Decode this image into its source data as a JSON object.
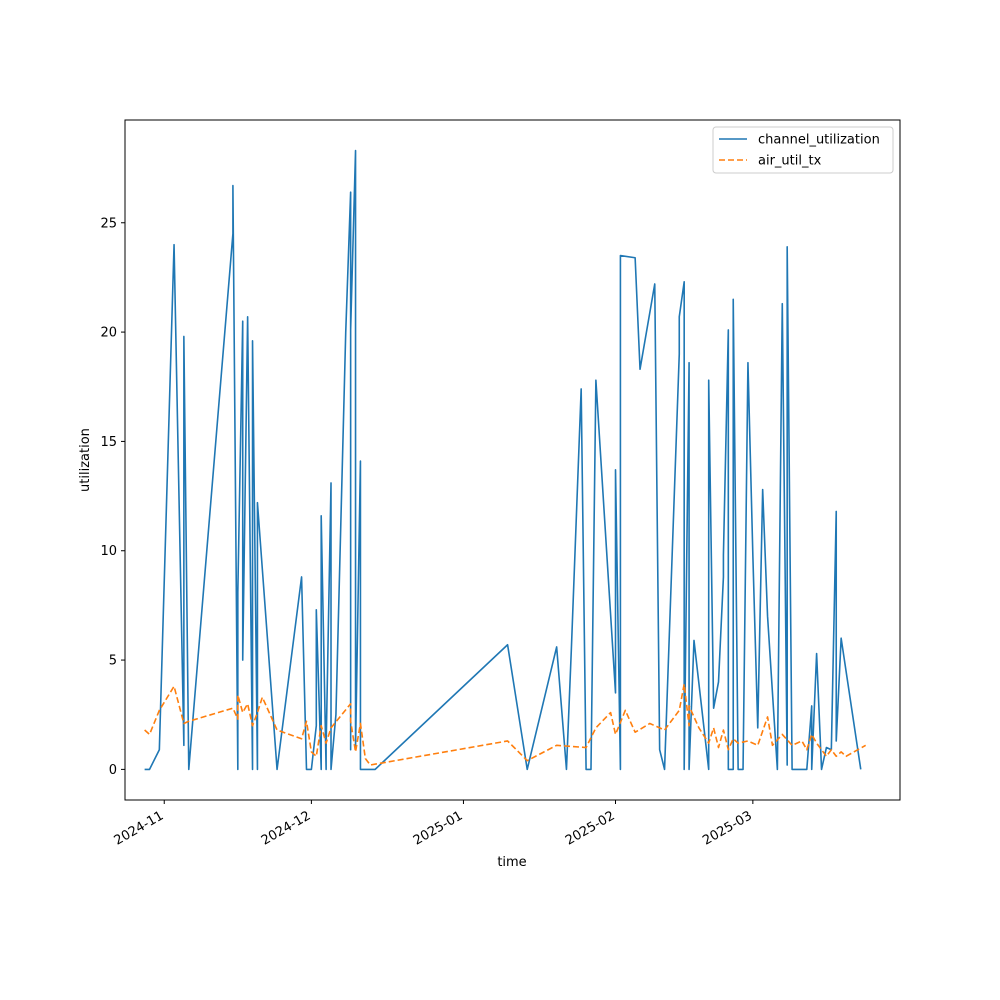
{
  "chart_data": {
    "type": "line",
    "xlabel": "time",
    "ylabel": "utilization",
    "x_type": "date",
    "xlim": [
      "2024-10-24",
      "2025-03-31"
    ],
    "ylim": [
      -1.4,
      29.7
    ],
    "x_ticks": [
      {
        "date": "2024-11-01",
        "label": "2024-11"
      },
      {
        "date": "2024-12-01",
        "label": "2024-12"
      },
      {
        "date": "2025-01-01",
        "label": "2025-01"
      },
      {
        "date": "2025-02-01",
        "label": "2025-02"
      },
      {
        "date": "2025-03-01",
        "label": "2025-03"
      }
    ],
    "y_ticks": [
      0,
      5,
      10,
      15,
      20,
      25
    ],
    "grid": false,
    "legend_position": "top-right",
    "series": [
      {
        "name": "channel_utilization",
        "color": "#1f77b4",
        "dash": "solid",
        "points": [
          [
            "2024-10-28",
            0
          ],
          [
            "2024-10-29",
            0
          ],
          [
            "2024-10-31",
            0.9
          ],
          [
            "2024-11-03",
            24.0
          ],
          [
            "2024-11-05",
            1.1
          ],
          [
            "2024-11-05",
            19.8
          ],
          [
            "2024-11-06",
            0
          ],
          [
            "2024-11-15",
            24.5
          ],
          [
            "2024-11-15",
            26.7
          ],
          [
            "2024-11-16",
            0
          ],
          [
            "2024-11-16",
            8.1
          ],
          [
            "2024-11-17",
            20.5
          ],
          [
            "2024-11-17",
            5.0
          ],
          [
            "2024-11-18",
            20.7
          ],
          [
            "2024-11-19",
            0
          ],
          [
            "2024-11-19",
            19.6
          ],
          [
            "2024-11-20",
            0
          ],
          [
            "2024-11-20",
            12.2
          ],
          [
            "2024-11-24",
            0
          ],
          [
            "2024-11-29",
            8.8
          ],
          [
            "2024-11-30",
            0
          ],
          [
            "2024-12-01",
            0
          ],
          [
            "2024-12-02",
            2.0
          ],
          [
            "2024-12-02",
            7.3
          ],
          [
            "2024-12-03",
            0
          ],
          [
            "2024-12-03",
            11.6
          ],
          [
            "2024-12-04",
            0
          ],
          [
            "2024-12-04",
            1.0
          ],
          [
            "2024-12-05",
            13.1
          ],
          [
            "2024-12-05",
            0
          ],
          [
            "2024-12-06",
            2.5
          ],
          [
            "2024-12-08",
            20.0
          ],
          [
            "2024-12-09",
            26.4
          ],
          [
            "2024-12-09",
            0.9
          ],
          [
            "2024-12-09",
            20.1
          ],
          [
            "2024-12-10",
            28.3
          ],
          [
            "2024-12-10",
            1.0
          ],
          [
            "2024-12-11",
            14.1
          ],
          [
            "2024-12-11",
            0
          ],
          [
            "2024-12-14",
            0
          ],
          [
            "2025-01-10",
            5.7
          ],
          [
            "2025-01-14",
            0
          ],
          [
            "2025-01-20",
            5.6
          ],
          [
            "2025-01-22",
            0
          ],
          [
            "2025-01-23",
            5.5
          ],
          [
            "2025-01-25",
            17.4
          ],
          [
            "2025-01-26",
            0
          ],
          [
            "2025-01-27",
            0
          ],
          [
            "2025-01-28",
            17.8
          ],
          [
            "2025-02-01",
            3.5
          ],
          [
            "2025-02-01",
            13.7
          ],
          [
            "2025-02-02",
            0
          ],
          [
            "2025-02-02",
            23.5
          ],
          [
            "2025-02-05",
            23.4
          ],
          [
            "2025-02-06",
            18.3
          ],
          [
            "2025-02-09",
            22.2
          ],
          [
            "2025-02-10",
            0.9
          ],
          [
            "2025-02-11",
            0
          ],
          [
            "2025-02-14",
            19.0
          ],
          [
            "2025-02-14",
            20.7
          ],
          [
            "2025-02-15",
            22.3
          ],
          [
            "2025-02-15",
            0
          ],
          [
            "2025-02-16",
            18.6
          ],
          [
            "2025-02-16",
            0
          ],
          [
            "2025-02-17",
            5.9
          ],
          [
            "2025-02-20",
            0
          ],
          [
            "2025-02-20",
            17.8
          ],
          [
            "2025-02-21",
            2.8
          ],
          [
            "2025-02-22",
            4.0
          ],
          [
            "2025-02-23",
            8.8
          ],
          [
            "2025-02-23",
            9.8
          ],
          [
            "2025-02-24",
            20.1
          ],
          [
            "2025-02-24",
            0
          ],
          [
            "2025-02-25",
            0
          ],
          [
            "2025-02-25",
            21.5
          ],
          [
            "2025-02-26",
            0
          ],
          [
            "2025-02-27",
            0
          ],
          [
            "2025-02-28",
            18.6
          ],
          [
            "2025-03-01",
            9.8
          ],
          [
            "2025-03-02",
            1.9
          ],
          [
            "2025-03-03",
            12.8
          ],
          [
            "2025-03-04",
            7.0
          ],
          [
            "2025-03-06",
            0
          ],
          [
            "2025-03-06",
            0
          ],
          [
            "2025-03-07",
            21.3
          ],
          [
            "2025-03-08",
            0.2
          ],
          [
            "2025-03-08",
            23.9
          ],
          [
            "2025-03-09",
            0
          ],
          [
            "2025-03-12",
            0
          ],
          [
            "2025-03-13",
            2.9
          ],
          [
            "2025-03-13",
            0
          ],
          [
            "2025-03-14",
            5.3
          ],
          [
            "2025-03-15",
            0
          ],
          [
            "2025-03-16",
            1.0
          ],
          [
            "2025-03-17",
            0.9
          ],
          [
            "2025-03-18",
            11.8
          ],
          [
            "2025-03-18",
            1.3
          ],
          [
            "2025-03-19",
            6.0
          ],
          [
            "2025-03-23",
            0
          ]
        ]
      },
      {
        "name": "air_util_tx",
        "color": "#ff7f0e",
        "dash": "dashed",
        "points": [
          [
            "2024-10-28",
            1.8
          ],
          [
            "2024-10-29",
            1.6
          ],
          [
            "2024-10-31",
            2.7
          ],
          [
            "2024-11-03",
            3.8
          ],
          [
            "2024-11-05",
            2.1
          ],
          [
            "2024-11-06",
            2.2
          ],
          [
            "2024-11-15",
            2.8
          ],
          [
            "2024-11-16",
            2.3
          ],
          [
            "2024-11-16",
            3.4
          ],
          [
            "2024-11-17",
            2.6
          ],
          [
            "2024-11-18",
            3.0
          ],
          [
            "2024-11-19",
            2.0
          ],
          [
            "2024-11-20",
            2.6
          ],
          [
            "2024-11-21",
            3.3
          ],
          [
            "2024-11-24",
            1.8
          ],
          [
            "2024-11-29",
            1.4
          ],
          [
            "2024-11-30",
            2.2
          ],
          [
            "2024-12-01",
            0.8
          ],
          [
            "2024-12-02",
            0.6
          ],
          [
            "2024-12-03",
            2.0
          ],
          [
            "2024-12-04",
            1.2
          ],
          [
            "2024-12-05",
            1.9
          ],
          [
            "2024-12-09",
            3.0
          ],
          [
            "2024-12-09",
            2.2
          ],
          [
            "2024-12-10",
            0.8
          ],
          [
            "2024-12-11",
            2.1
          ],
          [
            "2024-12-12",
            0.5
          ],
          [
            "2024-12-13",
            0.2
          ],
          [
            "2025-01-10",
            1.3
          ],
          [
            "2025-01-14",
            0.4
          ],
          [
            "2025-01-20",
            1.1
          ],
          [
            "2025-01-26",
            1.0
          ],
          [
            "2025-01-28",
            1.9
          ],
          [
            "2025-01-31",
            2.6
          ],
          [
            "2025-02-01",
            1.6
          ],
          [
            "2025-02-03",
            2.7
          ],
          [
            "2025-02-05",
            1.7
          ],
          [
            "2025-02-08",
            2.1
          ],
          [
            "2025-02-11",
            1.8
          ],
          [
            "2025-02-14",
            2.7
          ],
          [
            "2025-02-15",
            3.9
          ],
          [
            "2025-02-16",
            2.0
          ],
          [
            "2025-02-16",
            2.9
          ],
          [
            "2025-02-18",
            1.9
          ],
          [
            "2025-02-20",
            1.2
          ],
          [
            "2025-02-21",
            1.9
          ],
          [
            "2025-02-22",
            1.0
          ],
          [
            "2025-02-23",
            1.8
          ],
          [
            "2025-02-24",
            0.9
          ],
          [
            "2025-02-25",
            1.4
          ],
          [
            "2025-02-26",
            1.2
          ],
          [
            "2025-02-28",
            1.3
          ],
          [
            "2025-03-02",
            1.1
          ],
          [
            "2025-03-04",
            2.4
          ],
          [
            "2025-03-05",
            1.1
          ],
          [
            "2025-03-07",
            1.6
          ],
          [
            "2025-03-09",
            1.1
          ],
          [
            "2025-03-11",
            1.3
          ],
          [
            "2025-03-12",
            0.9
          ],
          [
            "2025-03-13",
            1.6
          ],
          [
            "2025-03-14",
            1.2
          ],
          [
            "2025-03-16",
            0.6
          ],
          [
            "2025-03-17",
            0.9
          ],
          [
            "2025-03-18",
            0.6
          ],
          [
            "2025-03-19",
            0.8
          ],
          [
            "2025-03-20",
            0.6
          ],
          [
            "2025-03-24",
            1.1
          ]
        ]
      }
    ]
  }
}
